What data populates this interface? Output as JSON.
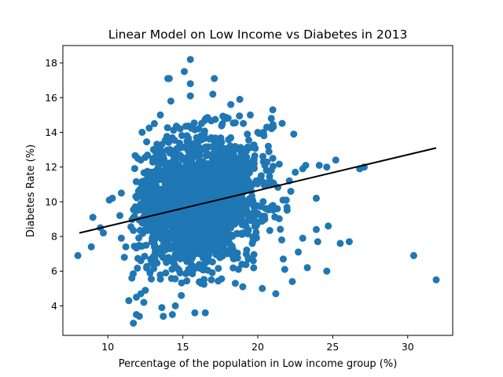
{
  "chart_data": {
    "type": "scatter",
    "title": "Linear Model on Low Income vs Diabetes in 2013",
    "xlabel": "Percentage of the population in Low income group (%)",
    "ylabel": "Diabetes Rate (%)",
    "xlim": [
      7.0,
      33.0
    ],
    "ylim": [
      2.3,
      19.0
    ],
    "xticks": [
      10,
      15,
      20,
      25,
      30
    ],
    "yticks": [
      4,
      6,
      8,
      10,
      12,
      14,
      16,
      18
    ],
    "grid": false,
    "colors": {
      "points": "#1f77b4",
      "fit_line": "#000000"
    },
    "fit_line": {
      "x": [
        8.1,
        31.9
      ],
      "y": [
        8.2,
        13.1
      ]
    },
    "cluster": {
      "x_center": 16.0,
      "x_spread": 2.0,
      "y_center": 10.0,
      "y_spread": 1.8,
      "count": 2200
    },
    "points": [
      [
        8.0,
        6.9
      ],
      [
        8.9,
        7.4
      ],
      [
        9.0,
        9.1
      ],
      [
        9.5,
        8.5
      ],
      [
        9.7,
        8.2
      ],
      [
        10.1,
        10.1
      ],
      [
        10.3,
        10.2
      ],
      [
        10.8,
        9.2
      ],
      [
        10.9,
        10.5
      ],
      [
        10.9,
        7.9
      ],
      [
        11.1,
        6.8
      ],
      [
        11.2,
        7.4
      ],
      [
        11.4,
        4.3
      ],
      [
        11.6,
        5.6
      ],
      [
        11.7,
        3.0
      ],
      [
        11.9,
        3.5
      ],
      [
        12.1,
        3.4
      ],
      [
        11.9,
        4.5
      ],
      [
        12.2,
        4.7
      ],
      [
        12.4,
        4.2
      ],
      [
        12.5,
        4.9
      ],
      [
        12.0,
        12.5
      ],
      [
        12.8,
        11.0
      ],
      [
        12.2,
        6.6
      ],
      [
        13.1,
        14.5
      ],
      [
        13.5,
        15.0
      ],
      [
        13.6,
        3.9
      ],
      [
        13.7,
        3.4
      ],
      [
        14.0,
        17.1
      ],
      [
        14.1,
        17.1
      ],
      [
        14.2,
        15.8
      ],
      [
        14.3,
        3.5
      ],
      [
        14.5,
        4.0
      ],
      [
        15.1,
        17.5
      ],
      [
        15.5,
        18.2
      ],
      [
        15.5,
        16.8
      ],
      [
        15.5,
        16.1
      ],
      [
        14.9,
        4.6
      ],
      [
        15.8,
        3.6
      ],
      [
        16.5,
        3.6
      ],
      [
        16.9,
        5.5
      ],
      [
        17.1,
        17.1
      ],
      [
        17.0,
        16.2
      ],
      [
        18.2,
        15.6
      ],
      [
        18.8,
        15.9
      ],
      [
        18.5,
        5.3
      ],
      [
        19.0,
        5.1
      ],
      [
        19.5,
        15.0
      ],
      [
        20.3,
        5.0
      ],
      [
        20.0,
        14.0
      ],
      [
        20.6,
        14.3
      ],
      [
        20.7,
        13.2
      ],
      [
        21.0,
        15.3
      ],
      [
        20.9,
        14.8
      ],
      [
        21.2,
        4.7
      ],
      [
        21.0,
        12.5
      ],
      [
        21.6,
        7.8
      ],
      [
        21.7,
        6.7
      ],
      [
        21.8,
        6.1
      ],
      [
        21.9,
        10.1
      ],
      [
        22.1,
        11.2
      ],
      [
        22.2,
        10.6
      ],
      [
        22.3,
        5.4
      ],
      [
        22.4,
        13.9
      ],
      [
        22.5,
        11.7
      ],
      [
        22.7,
        7.1
      ],
      [
        23.0,
        11.9
      ],
      [
        23.2,
        12.1
      ],
      [
        23.0,
        7.9
      ],
      [
        23.3,
        6.2
      ],
      [
        23.9,
        10.2
      ],
      [
        23.9,
        8.4
      ],
      [
        24.0,
        7.7
      ],
      [
        24.1,
        12.1
      ],
      [
        24.6,
        12.0
      ],
      [
        24.7,
        8.6
      ],
      [
        24.6,
        6.0
      ],
      [
        25.2,
        12.4
      ],
      [
        25.5,
        7.6
      ],
      [
        26.1,
        7.7
      ],
      [
        26.8,
        11.9
      ],
      [
        27.1,
        12.0
      ],
      [
        30.4,
        6.9
      ],
      [
        31.9,
        5.5
      ]
    ]
  }
}
